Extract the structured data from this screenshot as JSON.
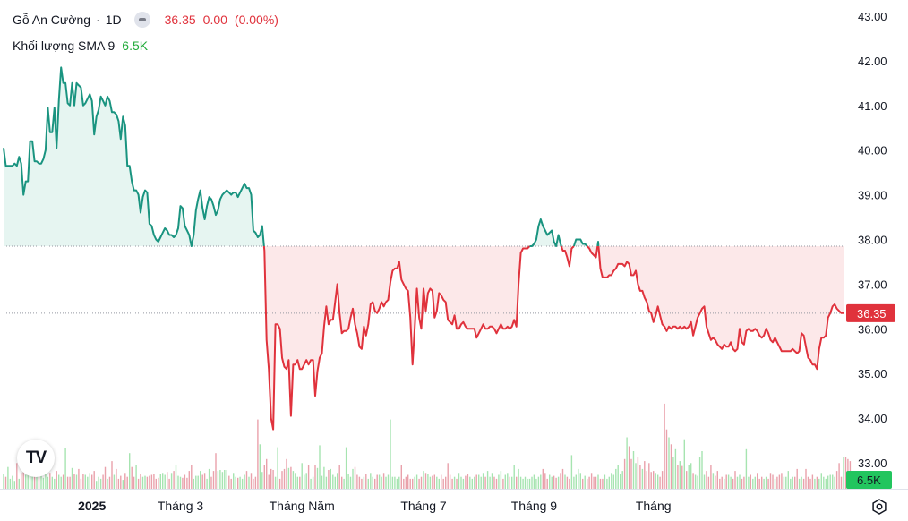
{
  "header": {
    "symbol": "Gỗ An Cường",
    "separator": "·",
    "interval": "1D",
    "last_price": "36.35",
    "change": "0.00",
    "change_pct": "(0.00%)",
    "volume_label": "Khối lượng SMA 9",
    "volume_value": "6.5K"
  },
  "logo_text": "TV",
  "colors": {
    "up": "#1a9480",
    "down": "#e0323c",
    "up_fill": "#e6f5f1",
    "down_fill": "#fce8e9",
    "vol_up": "#a6e4b0",
    "vol_down": "#e9a1ab",
    "vol_badge": "#22c55e",
    "price_badge": "#e0323c",
    "grid_text": "#131722"
  },
  "chart_data": {
    "type": "area",
    "baseline": 37.85,
    "last_value": 36.35,
    "ylim": [
      33,
      43.5
    ],
    "y_ticks": [
      "43.00",
      "42.00",
      "41.00",
      "40.00",
      "39.00",
      "38.00",
      "37.00",
      "36.00",
      "35.00",
      "34.00",
      "33.00"
    ],
    "x_tick_labels": [
      "2025",
      "Tháng 3",
      "Tháng Năm",
      "Tháng 7",
      "Tháng 9",
      "Tháng"
    ],
    "x_tick_index": [
      40,
      80,
      135,
      190,
      240,
      294
    ],
    "last_price_label": "36.35",
    "volume_badge_label": "6.5K",
    "series": [
      {
        "values": [
          40.05,
          39.65,
          39.65,
          39.65,
          39.65,
          39.7,
          39.65,
          39.85,
          39.7,
          39.0,
          39.3,
          39.3,
          40.2,
          40.2,
          39.75,
          39.75,
          39.7,
          39.7,
          39.8,
          40.0,
          40.95,
          40.4,
          40.4,
          40.95,
          40.05,
          41.1,
          41.85,
          41.5,
          41.5,
          41.05,
          41.0,
          41.5,
          41.0,
          41.5,
          41.45,
          41.4,
          41.0,
          41.05,
          41.15,
          41.25,
          41.1,
          40.35,
          40.75,
          40.9,
          41.2,
          41.1,
          41.0,
          41.2,
          41.1,
          40.85,
          40.85,
          40.8,
          40.65,
          40.25,
          40.75,
          40.55,
          39.65,
          39.65,
          39.3,
          39.1,
          39.1,
          39.0,
          38.6,
          38.95,
          39.1,
          39.05,
          38.35,
          38.3,
          38.1,
          38.0,
          37.95,
          38.05,
          38.15,
          38.25,
          38.2,
          38.1,
          38.1,
          38.05,
          38.1,
          38.25,
          38.75,
          38.7,
          38.3,
          38.2,
          38.1,
          37.85,
          38.1,
          38.65,
          38.9,
          39.1,
          38.7,
          38.45,
          38.75,
          38.95,
          38.9,
          38.75,
          38.55,
          38.65,
          38.9,
          39.0,
          39.05,
          39.1,
          39.05,
          39.0,
          39.05,
          39.05,
          38.95,
          39.05,
          39.15,
          39.25,
          39.15,
          39.15,
          39.0,
          38.2,
          38.15,
          38.05,
          38.1,
          38.3,
          37.75,
          35.75,
          35.1,
          34.0,
          33.75,
          36.1,
          36.1,
          36.0,
          35.35,
          35.15,
          35.1,
          35.3,
          34.05,
          35.2,
          35.2,
          35.3,
          35.1,
          35.1,
          35.2,
          35.3,
          35.2,
          35.3,
          35.3,
          34.5,
          35.05,
          35.35,
          35.45,
          36.05,
          36.5,
          36.1,
          36.2,
          36.2,
          36.6,
          37.0,
          36.35,
          35.9,
          35.95,
          35.95,
          36.0,
          36.25,
          36.45,
          36.1,
          35.9,
          35.6,
          35.55,
          36.05,
          35.85,
          36.1,
          36.55,
          36.6,
          36.4,
          36.35,
          36.45,
          36.6,
          36.5,
          36.6,
          36.65,
          37.05,
          37.3,
          37.35,
          37.35,
          37.5,
          37.1,
          37.0,
          36.9,
          36.85,
          36.25,
          35.2,
          36.0,
          36.9,
          36.25,
          36.0,
          36.9,
          36.4,
          36.8,
          36.9,
          36.85,
          36.25,
          36.4,
          36.8,
          36.75,
          36.65,
          36.6,
          36.2,
          36.15,
          36.1,
          36.3,
          36.0,
          36.0,
          36.1,
          36.15,
          36.05,
          36.0,
          36.0,
          36.0,
          36.0,
          35.8,
          35.9,
          36.0,
          36.1,
          36.0,
          36.0,
          36.05,
          36.05,
          36.0,
          35.9,
          36.0,
          36.1,
          36.0,
          36.0,
          36.05,
          36.0,
          36.05,
          36.2,
          36.05,
          37.0,
          37.7,
          37.8,
          37.8,
          37.8,
          37.85,
          37.85,
          37.9,
          38.0,
          38.3,
          38.45,
          38.3,
          38.2,
          38.1,
          38.15,
          38.2,
          37.95,
          37.85,
          38.1,
          37.9,
          37.75,
          37.75,
          37.6,
          37.4,
          37.8,
          37.85,
          38.0,
          38.0,
          38.0,
          37.9,
          37.9,
          37.85,
          37.8,
          37.7,
          37.65,
          37.6,
          37.95,
          37.35,
          37.15,
          37.15,
          37.15,
          37.2,
          37.2,
          37.3,
          37.35,
          37.45,
          37.45,
          37.45,
          37.4,
          37.5,
          37.45,
          37.2,
          37.2,
          37.3,
          37.0,
          36.85,
          36.85,
          36.7,
          36.6,
          36.4,
          36.35,
          36.15,
          36.3,
          36.5,
          36.3,
          36.1,
          36.05,
          35.95,
          36.05,
          36.0,
          36.05,
          36.05,
          36.0,
          36.05,
          36.0,
          36.05,
          36.0,
          36.05,
          36.15,
          35.85,
          36.05,
          36.25,
          36.35,
          36.45,
          36.5,
          36.05,
          35.9,
          35.75,
          35.8,
          35.75,
          35.65,
          35.6,
          35.55,
          35.65,
          35.6,
          35.6,
          35.7,
          35.55,
          35.5,
          35.55,
          36.0,
          35.7,
          35.65,
          35.95,
          36.0,
          35.95,
          35.95,
          36.0,
          35.95,
          35.85,
          35.8,
          35.85,
          36.0,
          35.9,
          35.75,
          35.7,
          35.8,
          35.7,
          35.6,
          35.5,
          35.5,
          35.5,
          35.5,
          35.5,
          35.55,
          35.5,
          35.45,
          35.5,
          35.9,
          35.85,
          35.6,
          35.35,
          35.3,
          35.2,
          35.2,
          35.1,
          35.55,
          35.8,
          35.8,
          35.85,
          36.25,
          36.35,
          36.5,
          36.55,
          36.45,
          36.4,
          36.35,
          36.35
        ]
      }
    ],
    "volume": {
      "values": [
        1.5,
        1.2,
        2.2,
        1.0,
        1.3,
        0.8,
        2.6,
        1.0,
        1.6,
        2.2,
        1.4,
        1.4,
        2.2,
        3.2,
        1.8,
        1.3,
        1.8,
        1.6,
        1.1,
        1.6,
        1.2,
        1.6,
        1.2,
        1.0,
        1.8,
        1.4,
        1.2,
        1.4,
        4.1,
        1.2,
        1.2,
        2.1,
        1.5,
        1.4,
        2.0,
        1.0,
        1.5,
        1.4,
        1.2,
        1.6,
        1.4,
        1.8,
        0.8,
        1.2,
        1.0,
        1.4,
        2.2,
        1.0,
        1.2,
        2.8,
        1.4,
        2.0,
        1.0,
        1.3,
        0.9,
        1.6,
        1.2,
        3.6,
        2.2,
        1.2,
        2.4,
        1.0,
        1.5,
        1.2,
        1.3,
        1.2,
        1.3,
        1.4,
        1.5,
        1.0,
        1.1,
        1.5,
        1.6,
        1.4,
        1.7,
        1.0,
        1.6,
        1.8,
        2.4,
        1.3,
        1.2,
        1.1,
        1.4,
        1.1,
        1.8,
        2.4,
        1.0,
        1.3,
        1.3,
        1.8,
        1.4,
        1.6,
        1.0,
        2.0,
        1.2,
        1.8,
        3.6,
        1.8,
        1.9,
        1.7,
        1.9,
        1.9,
        1.3,
        1.0,
        1.6,
        1.2,
        1.1,
        1.2,
        1.0,
        1.4,
        1.8,
        1.2,
        1.6,
        1.0,
        1.2,
        7.0,
        4.5,
        1.7,
        2.4,
        3.0,
        1.4,
        2.0,
        1.9,
        1.2,
        4.2,
        1.0,
        1.8,
        2.0,
        3.0,
        2.1,
        2.2,
        1.8,
        1.6,
        1.2,
        1.2,
        2.6,
        1.4,
        1.6,
        2.4,
        1.0,
        1.2,
        2.4,
        2.1,
        4.4,
        1.3,
        2.2,
        1.2,
        1.9,
        2.0,
        1.4,
        1.2,
        1.6,
        2.4,
        1.2,
        1.0,
        4.2,
        1.5,
        1.2,
        2.0,
        2.2,
        1.4,
        1.2,
        1.0,
        1.2,
        1.5,
        1.0,
        1.6,
        1.2,
        1.0,
        1.4,
        1.4,
        1.2,
        1.6,
        1.2,
        1.4,
        7.0,
        1.2,
        1.2,
        1.0,
        1.2,
        2.4,
        1.0,
        1.2,
        1.4,
        1.0,
        1.0,
        1.2,
        1.4,
        1.0,
        1.2,
        1.8,
        1.6,
        1.5,
        1.2,
        1.3,
        1.4,
        1.2,
        1.0,
        1.4,
        1.0,
        1.2,
        2.6,
        1.4,
        1.0,
        1.2,
        1.0,
        1.6,
        1.2,
        1.0,
        1.3,
        1.5,
        1.2,
        1.0,
        1.2,
        1.4,
        1.4,
        1.2,
        1.6,
        1.2,
        1.8,
        1.2,
        1.6,
        1.2,
        1.0,
        1.4,
        1.8,
        1.0,
        1.4,
        1.6,
        1.2,
        1.2,
        2.4,
        1.2,
        2.0,
        1.2,
        1.0,
        1.2,
        1.0,
        1.0,
        1.2,
        1.4,
        1.0,
        1.2,
        1.4,
        2.0,
        1.6,
        1.0,
        1.4,
        1.2,
        1.3,
        1.1,
        1.2,
        1.6,
        2.0,
        1.4,
        1.2,
        1.0,
        3.4,
        1.2,
        1.4,
        2.0,
        1.6,
        1.0,
        1.3,
        1.0,
        1.2,
        1.6,
        1.2,
        1.2,
        1.4,
        1.0,
        1.0,
        1.4,
        1.0,
        1.2,
        1.6,
        1.4,
        2.0,
        2.4,
        1.5,
        1.8,
        3.0,
        5.2,
        4.3,
        3.0,
        3.8,
        2.6,
        3.2,
        2.4,
        2.0,
        2.8,
        1.8,
        2.6,
        1.7,
        1.8,
        1.6,
        1.4,
        1.2,
        1.8,
        8.6,
        6.0,
        5.2,
        4.5,
        3.2,
        4.0,
        2.4,
        2.8,
        2.3,
        5.0,
        1.8,
        2.4,
        2.6,
        1.6,
        1.4,
        1.3,
        3.2,
        3.8,
        1.4,
        1.8,
        1.2,
        2.4,
        1.6,
        1.3,
        1.8,
        1.0,
        1.2,
        1.0,
        1.4,
        1.4,
        1.2,
        1.0,
        1.8,
        1.2,
        1.4,
        1.0,
        1.2,
        4.0,
        1.2,
        1.4,
        1.0,
        1.2,
        1.6,
        1.0,
        1.2,
        1.0,
        1.2,
        1.0,
        1.6,
        1.4,
        1.0,
        1.2,
        1.4,
        1.6,
        1.2,
        1.2,
        1.8,
        1.0,
        1.2,
        1.2,
        2.0,
        1.0,
        1.2,
        1.0,
        2.0,
        1.2,
        1.0,
        1.4,
        1.0,
        1.2,
        1.0,
        1.6,
        1.2,
        1.0,
        1.3,
        1.4,
        1.4,
        1.2,
        1.8,
        2.6,
        1.2,
        3.2,
        3.2,
        3.0,
        2.8
      ]
    }
  }
}
